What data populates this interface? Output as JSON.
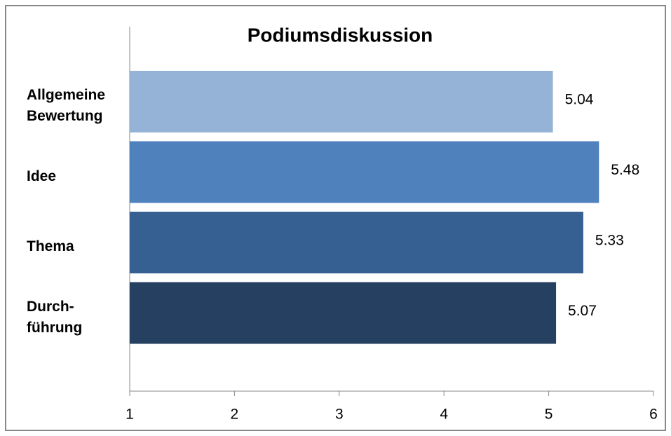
{
  "chart_data": {
    "type": "barh",
    "title": "Podiumsdiskussion",
    "categories": [
      "Allgemeine\nBewertung",
      "Idee",
      "Thema",
      "Durch-\nführung"
    ],
    "values": [
      5.04,
      5.48,
      5.33,
      5.07
    ],
    "colors": [
      "#95b3d7",
      "#4f81bd",
      "#376092",
      "#254061"
    ],
    "xlim": [
      1,
      6
    ],
    "xticks": [
      1,
      2,
      3,
      4,
      5,
      6
    ]
  }
}
